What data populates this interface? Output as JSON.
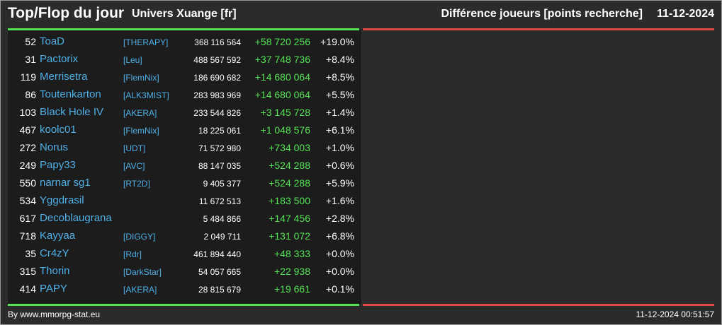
{
  "header": {
    "title": "Top/Flop du jour",
    "universe": "Univers Xuange [fr]",
    "subtitle": "Différence joueurs [points recherche]",
    "date": "11-12-2024"
  },
  "colors": {
    "background": "#2b2b2b",
    "panel": "#1c1c1c",
    "top_line": "#55e255",
    "flop_line": "#e04848",
    "player_name": "#4fb0e8",
    "gain": "#55e255"
  },
  "top_rows": [
    {
      "rank": "52",
      "name": "ToaD",
      "alliance": "[THERAPY]",
      "points": "368 116 564",
      "diff": "+58 720 256",
      "pct": "+19.0%"
    },
    {
      "rank": "31",
      "name": "Pactorix",
      "alliance": "[Leu]",
      "points": "488 567 592",
      "diff": "+37 748 736",
      "pct": "+8.4%"
    },
    {
      "rank": "119",
      "name": "Merrisetra",
      "alliance": "[FlemNix]",
      "points": "186 690 682",
      "diff": "+14 680 064",
      "pct": "+8.5%"
    },
    {
      "rank": "86",
      "name": "Toutenkarton",
      "alliance": "[ALK3MIST]",
      "points": "283 983 969",
      "diff": "+14 680 064",
      "pct": "+5.5%"
    },
    {
      "rank": "103",
      "name": "Black Hole IV",
      "alliance": "[AKERA]",
      "points": "233 544 826",
      "diff": "+3 145 728",
      "pct": "+1.4%"
    },
    {
      "rank": "467",
      "name": "koolc01",
      "alliance": "[FlemNix]",
      "points": "18 225 061",
      "diff": "+1 048 576",
      "pct": "+6.1%"
    },
    {
      "rank": "272",
      "name": "Norus",
      "alliance": "[UDT]",
      "points": "71 572 980",
      "diff": "+734 003",
      "pct": "+1.0%"
    },
    {
      "rank": "249",
      "name": "Papy33",
      "alliance": "[AVC]",
      "points": "88 147 035",
      "diff": "+524 288",
      "pct": "+0.6%"
    },
    {
      "rank": "550",
      "name": "narnar sg1",
      "alliance": "[RT2D]",
      "points": "9 405 377",
      "diff": "+524 288",
      "pct": "+5.9%"
    },
    {
      "rank": "534",
      "name": "Yggdrasil",
      "alliance": "",
      "points": "11 672 513",
      "diff": "+183 500",
      "pct": "+1.6%"
    },
    {
      "rank": "617",
      "name": "Decoblaugrana",
      "alliance": "",
      "points": "5 484 866",
      "diff": "+147 456",
      "pct": "+2.8%"
    },
    {
      "rank": "718",
      "name": "Kayyaa",
      "alliance": "[DIGGY]",
      "points": "2 049 711",
      "diff": "+131 072",
      "pct": "+6.8%"
    },
    {
      "rank": "35",
      "name": "Cr4zY",
      "alliance": "[Rdr]",
      "points": "461 894 440",
      "diff": "+48 333",
      "pct": "+0.0%"
    },
    {
      "rank": "315",
      "name": "Thorin",
      "alliance": "[DarkStar]",
      "points": "54 057 665",
      "diff": "+22 938",
      "pct": "+0.0%"
    },
    {
      "rank": "414",
      "name": "PAPY",
      "alliance": "[AKERA]",
      "points": "28 815 679",
      "diff": "+19 661",
      "pct": "+0.1%"
    }
  ],
  "footer": {
    "source": "By www.mmorpg-stat.eu",
    "timestamp": "11-12-2024 00:51:57"
  }
}
